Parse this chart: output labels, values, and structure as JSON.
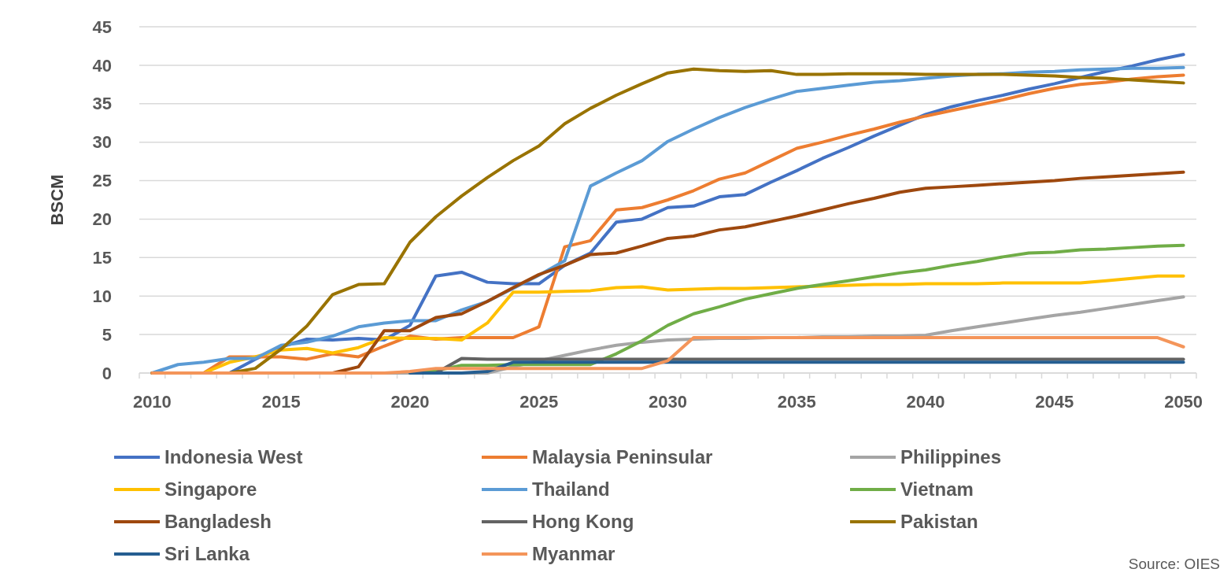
{
  "chart_data": {
    "type": "line",
    "ylabel": "BSCM",
    "annotations": [
      "Source: OIES"
    ],
    "x": [
      2010,
      2011,
      2012,
      2013,
      2014,
      2015,
      2016,
      2017,
      2018,
      2019,
      2020,
      2021,
      2022,
      2023,
      2024,
      2025,
      2026,
      2027,
      2028,
      2029,
      2030,
      2031,
      2032,
      2033,
      2034,
      2035,
      2036,
      2037,
      2038,
      2039,
      2040,
      2041,
      2042,
      2043,
      2044,
      2045,
      2046,
      2047,
      2048,
      2049,
      2050
    ],
    "xlim": [
      2009.5,
      2050.5
    ],
    "xticks": [
      2010,
      2015,
      2020,
      2025,
      2030,
      2035,
      2040,
      2045,
      2050
    ],
    "ylim": [
      0,
      45
    ],
    "yticks": [
      0,
      5,
      10,
      15,
      20,
      25,
      30,
      35,
      40,
      45
    ],
    "grid": "y",
    "legend": "bottom",
    "marker": "none",
    "line_style": "solid",
    "series": [
      {
        "name": "Indonesia West",
        "color": "#4472c4",
        "values": [
          0,
          0,
          0,
          0,
          1.8,
          3.4,
          4.4,
          4.3,
          4.5,
          4.3,
          6.2,
          12.6,
          13.1,
          11.8,
          11.6,
          11.6,
          14.0,
          15.6,
          19.6,
          20.0,
          21.5,
          21.7,
          22.9,
          23.2,
          24.8,
          26.3,
          27.9,
          29.3,
          30.8,
          32.2,
          33.6,
          34.6,
          35.4,
          36.1,
          36.9,
          37.6,
          38.4,
          39.2,
          39.9,
          40.7,
          41.4
        ]
      },
      {
        "name": "Malaysia Peninsular",
        "color": "#ed7d31",
        "values": [
          0,
          0,
          0,
          2.1,
          2.1,
          2.1,
          1.8,
          2.5,
          2.1,
          3.5,
          4.8,
          4.4,
          4.6,
          4.6,
          4.6,
          6.0,
          16.4,
          17.2,
          21.2,
          21.5,
          22.5,
          23.7,
          25.2,
          26.0,
          27.6,
          29.2,
          30.0,
          30.9,
          31.7,
          32.6,
          33.4,
          34.1,
          34.8,
          35.5,
          36.3,
          37.0,
          37.5,
          37.8,
          38.2,
          38.5,
          38.7
        ]
      },
      {
        "name": "Philippines",
        "color": "#a5a5a5",
        "values": [
          0,
          0,
          0,
          0,
          0,
          0,
          0,
          0,
          0,
          0,
          0,
          0,
          0,
          0,
          0.8,
          1.6,
          2.3,
          3.0,
          3.6,
          4.0,
          4.3,
          4.4,
          4.5,
          4.5,
          4.6,
          4.6,
          4.7,
          4.7,
          4.8,
          4.8,
          4.9,
          5.5,
          6.0,
          6.5,
          7.0,
          7.5,
          7.9,
          8.4,
          8.9,
          9.4,
          9.9
        ]
      },
      {
        "name": "Singapore",
        "color": "#ffc000",
        "values": [
          0,
          0,
          0,
          1.4,
          2.1,
          3.0,
          3.2,
          2.6,
          3.3,
          4.6,
          4.5,
          4.5,
          4.3,
          6.5,
          10.5,
          10.5,
          10.6,
          10.7,
          11.1,
          11.2,
          10.8,
          10.9,
          11.0,
          11.0,
          11.1,
          11.2,
          11.3,
          11.4,
          11.5,
          11.5,
          11.6,
          11.6,
          11.6,
          11.7,
          11.7,
          11.7,
          11.7,
          12.0,
          12.3,
          12.6,
          12.6
        ]
      },
      {
        "name": "Thailand",
        "color": "#5b9bd5",
        "values": [
          0,
          1.1,
          1.4,
          1.9,
          1.9,
          3.6,
          4.0,
          4.8,
          6.0,
          6.5,
          6.8,
          6.8,
          8.2,
          9.3,
          11.0,
          12.7,
          14.6,
          24.3,
          26.0,
          27.6,
          30.1,
          31.7,
          33.2,
          34.5,
          35.6,
          36.6,
          37.0,
          37.4,
          37.8,
          38.0,
          38.3,
          38.6,
          38.8,
          38.9,
          39.1,
          39.2,
          39.4,
          39.5,
          39.6,
          39.6,
          39.7
        ]
      },
      {
        "name": "Vietnam",
        "color": "#70ad47",
        "values": [
          null,
          null,
          null,
          null,
          null,
          null,
          null,
          null,
          null,
          null,
          0,
          0.3,
          1.0,
          1.0,
          1.1,
          1.1,
          1.1,
          1.1,
          2.5,
          4.2,
          6.2,
          7.7,
          8.6,
          9.6,
          10.3,
          11.0,
          11.5,
          12.0,
          12.5,
          13.0,
          13.4,
          14.0,
          14.5,
          15.1,
          15.6,
          15.7,
          16.0,
          16.1,
          16.3,
          16.5,
          16.6
        ]
      },
      {
        "name": "Bangladesh",
        "color": "#9e480e",
        "values": [
          0,
          0,
          0,
          0,
          0,
          0,
          0,
          0,
          0.8,
          5.5,
          5.5,
          7.2,
          7.7,
          9.3,
          11.1,
          12.8,
          14.0,
          15.4,
          15.6,
          16.5,
          17.5,
          17.8,
          18.6,
          19.0,
          19.7,
          20.4,
          21.2,
          22.0,
          22.7,
          23.5,
          24.0,
          24.2,
          24.4,
          24.6,
          24.8,
          25.0,
          25.3,
          25.5,
          25.7,
          25.9,
          26.1
        ]
      },
      {
        "name": "Hong Kong",
        "color": "#636363",
        "values": [
          null,
          null,
          null,
          null,
          null,
          null,
          null,
          null,
          null,
          null,
          null,
          0,
          1.9,
          1.8,
          1.8,
          1.8,
          1.8,
          1.8,
          1.8,
          1.8,
          1.8,
          1.8,
          1.8,
          1.8,
          1.8,
          1.8,
          1.8,
          1.8,
          1.8,
          1.8,
          1.8,
          1.8,
          1.8,
          1.8,
          1.8,
          1.8,
          1.8,
          1.8,
          1.8,
          1.8,
          1.8
        ]
      },
      {
        "name": "Pakistan",
        "color": "#997300",
        "values": [
          0,
          0,
          0,
          0,
          0.6,
          3.1,
          6.1,
          10.2,
          11.5,
          11.6,
          17.0,
          20.3,
          23.0,
          25.4,
          27.6,
          29.5,
          32.4,
          34.4,
          36.1,
          37.6,
          39.0,
          39.5,
          39.3,
          39.2,
          39.3,
          38.8,
          38.8,
          38.9,
          38.9,
          38.9,
          38.8,
          38.8,
          38.8,
          38.8,
          38.7,
          38.6,
          38.4,
          38.3,
          38.1,
          37.9,
          37.7
        ]
      },
      {
        "name": "Sri Lanka",
        "color": "#255e91",
        "values": [
          null,
          null,
          null,
          null,
          null,
          null,
          null,
          null,
          null,
          null,
          0,
          0,
          0,
          0.2,
          1.4,
          1.4,
          1.4,
          1.4,
          1.4,
          1.4,
          1.4,
          1.4,
          1.4,
          1.4,
          1.4,
          1.4,
          1.4,
          1.4,
          1.4,
          1.4,
          1.4,
          1.4,
          1.4,
          1.4,
          1.4,
          1.4,
          1.4,
          1.4,
          1.4,
          1.4,
          1.4
        ]
      },
      {
        "name": "Myanmar",
        "color": "#f4955a",
        "values": [
          0,
          0,
          0,
          0,
          0,
          0,
          0,
          0,
          0,
          0,
          0.2,
          0.6,
          0.6,
          0.6,
          0.6,
          0.6,
          0.6,
          0.6,
          0.6,
          0.6,
          1.6,
          4.6,
          4.6,
          4.6,
          4.6,
          4.6,
          4.6,
          4.6,
          4.6,
          4.6,
          4.6,
          4.6,
          4.6,
          4.6,
          4.6,
          4.6,
          4.6,
          4.6,
          4.6,
          4.6,
          3.4
        ]
      }
    ]
  }
}
